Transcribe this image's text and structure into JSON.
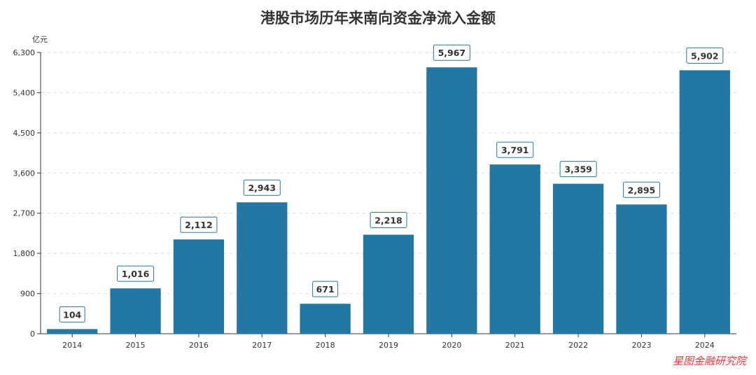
{
  "chart_data": {
    "type": "bar",
    "title": "港股市场历年来南向资金净流入金额",
    "ylabel": "亿元",
    "xlabel": "",
    "categories": [
      "2014",
      "2015",
      "2016",
      "2017",
      "2018",
      "2019",
      "2020",
      "2021",
      "2022",
      "2023",
      "2024"
    ],
    "values": [
      104,
      1016,
      2112,
      2943,
      671,
      2218,
      5967,
      3791,
      3359,
      2895,
      5902
    ],
    "data_labels": [
      "104",
      "1,016",
      "2,112",
      "2,943",
      "671",
      "2,218",
      "5,967",
      "3,791",
      "3,359",
      "2,895",
      "5,902"
    ],
    "ylim": [
      0,
      6300
    ],
    "yticks": [
      0,
      900,
      1800,
      2700,
      3600,
      4500,
      5400,
      6300
    ],
    "ytick_labels": [
      "0",
      "900",
      "1,800",
      "2,700",
      "3,600",
      "4,500",
      "5,400",
      "6,300"
    ],
    "grid": true,
    "colors": {
      "bar": "#2277a3",
      "axis": "#333333",
      "grid": "#e0e0e0",
      "label_border": "#2277a3"
    }
  },
  "watermark": "星图金融研究院"
}
